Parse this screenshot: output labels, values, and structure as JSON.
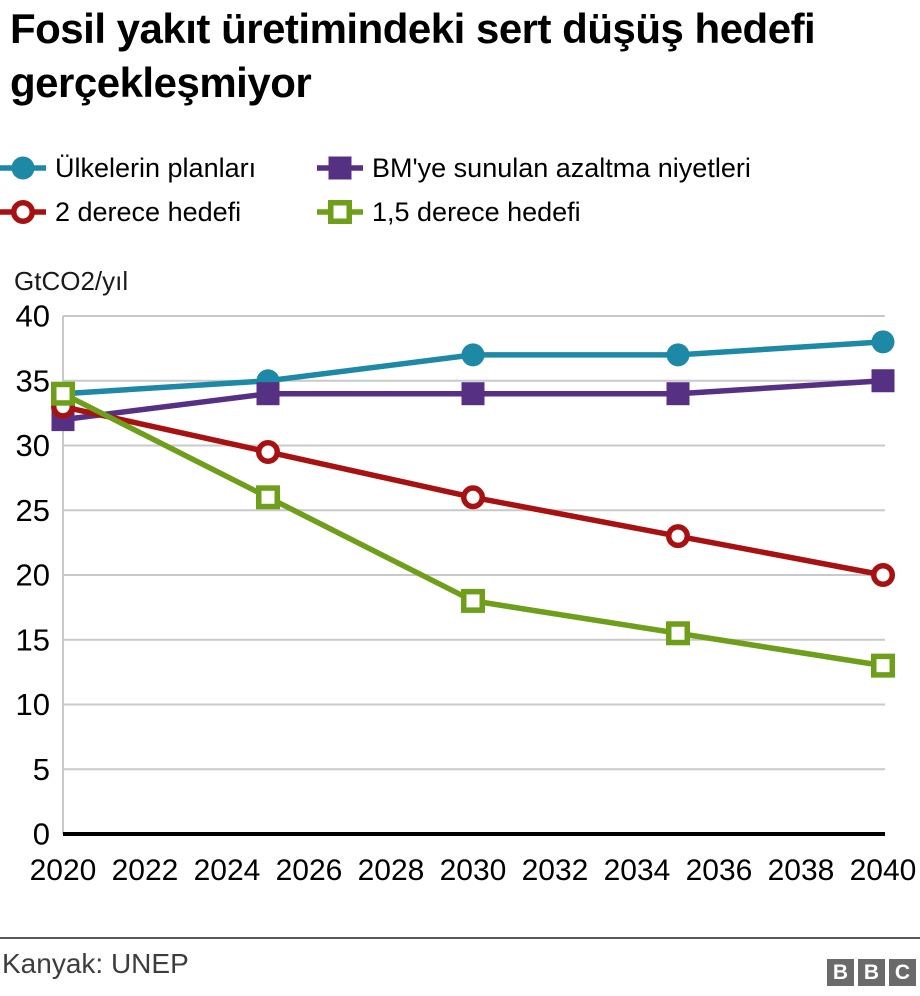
{
  "title": "Fosil yakıt üretimindeki sert düşüş hedefi gerçekleşmiyor",
  "chart_data": {
    "type": "line",
    "title": "Fosil yakıt üretimindeki sert düşüş hedefi gerçekleşmiyor",
    "ylabel": "GtCO2/yıl",
    "xlabel": "",
    "x": [
      2020,
      2025,
      2030,
      2035,
      2040
    ],
    "series": [
      {
        "name": "Ülkelerin planları",
        "marker": "filled-circle",
        "color": "#1D89A6",
        "values": [
          34,
          35,
          37,
          37,
          38
        ]
      },
      {
        "name": "BM'ye sunulan azaltma niyetleri",
        "marker": "filled-square",
        "color": "#563183",
        "values": [
          32,
          34,
          34,
          34,
          35
        ]
      },
      {
        "name": "2 derece hedefi",
        "marker": "open-circle",
        "color": "#A81111",
        "values": [
          33,
          29.5,
          26,
          23,
          20
        ]
      },
      {
        "name": "1,5 derece hedefi",
        "marker": "open-square",
        "color": "#6F9E1B",
        "values": [
          34,
          26,
          18,
          15.5,
          13
        ]
      }
    ],
    "ylim": [
      0,
      40
    ],
    "ytick_step": 5,
    "yticks": [
      0,
      5,
      10,
      15,
      20,
      25,
      30,
      35,
      40
    ],
    "xlim": [
      2020,
      2040
    ],
    "xtick_step": 2,
    "xticks": [
      2020,
      2022,
      2024,
      2026,
      2028,
      2030,
      2032,
      2034,
      2036,
      2038,
      2040
    ],
    "grid": true,
    "gridline_color": "#c9c9c9",
    "axis_color": "#000000",
    "legend_position": "top-left"
  },
  "footer": {
    "source": "Kanyak: UNEP",
    "logo_letters": [
      "B",
      "B",
      "C"
    ]
  }
}
